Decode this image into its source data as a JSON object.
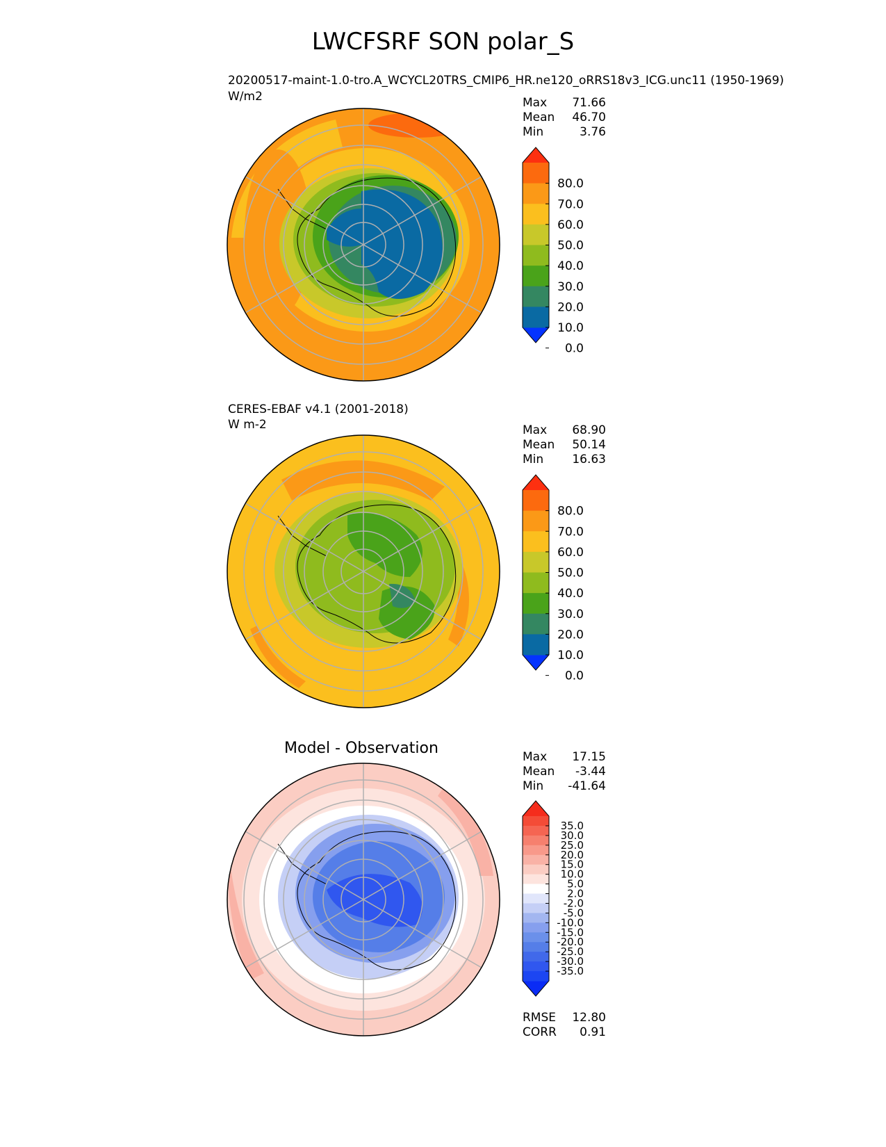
{
  "title": "LWCFSRF SON polar_S",
  "panels": [
    {
      "name": "model",
      "title": "20200517-maint-1.0-tro.A_WCYCL20TRS_CMIP6_HR.ne120_oRRS18v3_ICG.unc11 (1950-1969)",
      "units": "W/m2",
      "stats": {
        "max_label": "Max",
        "max": "71.66",
        "mean_label": "Mean",
        "mean": "46.70",
        "min_label": "Min",
        "min": "3.76"
      },
      "colorbar": {
        "ticks": [
          "80.0",
          "70.0",
          "60.0",
          "50.0",
          "40.0",
          "30.0",
          "20.0",
          "10.0",
          "0.0"
        ],
        "colors": [
          "#0433ff",
          "#0a6aa3",
          "#348761",
          "#4aa31a",
          "#8fbb1e",
          "#c8c82a",
          "#fbbf1e",
          "#fb9917",
          "#fc6a0e",
          "#fd3010"
        ]
      }
    },
    {
      "name": "obs",
      "title": "CERES-EBAF v4.1 (2001-2018)",
      "units": "W m-2",
      "stats": {
        "max_label": "Max",
        "max": "68.90",
        "mean_label": "Mean",
        "mean": "50.14",
        "min_label": "Min",
        "min": "16.63"
      },
      "colorbar": {
        "ticks": [
          "80.0",
          "70.0",
          "60.0",
          "50.0",
          "40.0",
          "30.0",
          "20.0",
          "10.0",
          "0.0"
        ],
        "colors": [
          "#0433ff",
          "#0a6aa3",
          "#348761",
          "#4aa31a",
          "#8fbb1e",
          "#c8c82a",
          "#fbbf1e",
          "#fb9917",
          "#fc6a0e",
          "#fd3010"
        ]
      }
    },
    {
      "name": "diff",
      "title": "Model - Observation",
      "stats": {
        "max_label": "Max",
        "max": "17.15",
        "mean_label": "Mean",
        "mean": "-3.44",
        "min_label": "Min",
        "min": "-41.64"
      },
      "colorbar": {
        "ticks": [
          "35.0",
          "30.0",
          "25.0",
          "20.0",
          "15.0",
          "10.0",
          "5.0",
          "2.0",
          "-2.0",
          "-5.0",
          "-10.0",
          "-15.0",
          "-20.0",
          "-25.0",
          "-30.0",
          "-35.0"
        ],
        "colors": [
          "#0a2cf5",
          "#1c46f2",
          "#3057ef",
          "#4169ea",
          "#557ee8",
          "#6b90ea",
          "#869fee",
          "#a3b6f0",
          "#c5cff6",
          "#e1e6fb",
          "#ffffff",
          "#fde4de",
          "#fbcdc3",
          "#f9b2a6",
          "#f8998a",
          "#f6806e",
          "#f56552",
          "#f44c37",
          "#f52d1c"
        ]
      },
      "rmse_label": "RMSE",
      "rmse": "12.80",
      "corr_label": "CORR",
      "corr": "0.91"
    }
  ],
  "chart_data": {
    "type": "heatmap",
    "projection": "south polar stereographic",
    "variable": "LWCFSRF",
    "season": "SON",
    "region": "polar_S",
    "panels": [
      {
        "name": "model",
        "max": 71.66,
        "mean": 46.7,
        "min": 3.76,
        "levels": [
          0,
          10,
          20,
          30,
          40,
          50,
          60,
          70,
          80
        ]
      },
      {
        "name": "obs",
        "max": 68.9,
        "mean": 50.14,
        "min": 16.63,
        "levels": [
          0,
          10,
          20,
          30,
          40,
          50,
          60,
          70,
          80
        ]
      },
      {
        "name": "diff",
        "max": 17.15,
        "mean": -3.44,
        "min": -41.64,
        "rmse": 12.8,
        "corr": 0.91,
        "levels": [
          -35,
          -30,
          -25,
          -20,
          -15,
          -10,
          -5,
          -2,
          2,
          5,
          10,
          15,
          20,
          25,
          30,
          35
        ]
      }
    ],
    "colorbar_extend": "both",
    "grid": true
  }
}
